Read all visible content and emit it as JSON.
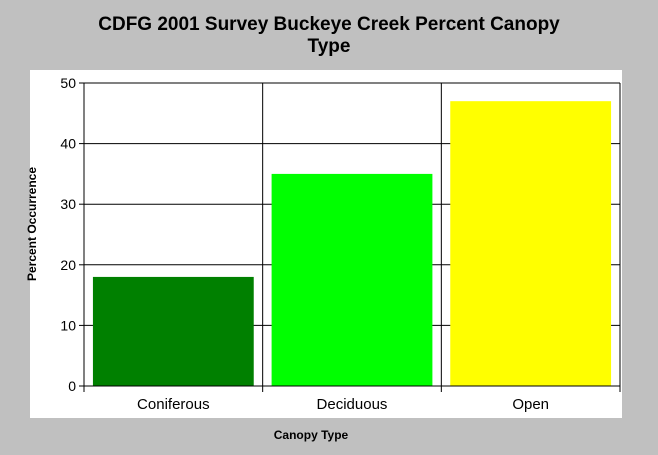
{
  "chart_data": {
    "type": "bar",
    "title_line1": "CDFG 2001 Survey Buckeye Creek Percent Canopy",
    "title_line2": "Type",
    "xlabel": "Canopy Type",
    "ylabel": "Percent Occurrence",
    "categories": [
      "Coniferous",
      "Deciduous",
      "Open"
    ],
    "values": [
      18,
      35,
      47
    ],
    "colors": [
      "#008000",
      "#00ff00",
      "#ffff00"
    ],
    "ylim": [
      0,
      50
    ],
    "yticks": [
      0,
      10,
      20,
      30,
      40,
      50
    ],
    "grid": true,
    "legend": "none"
  }
}
